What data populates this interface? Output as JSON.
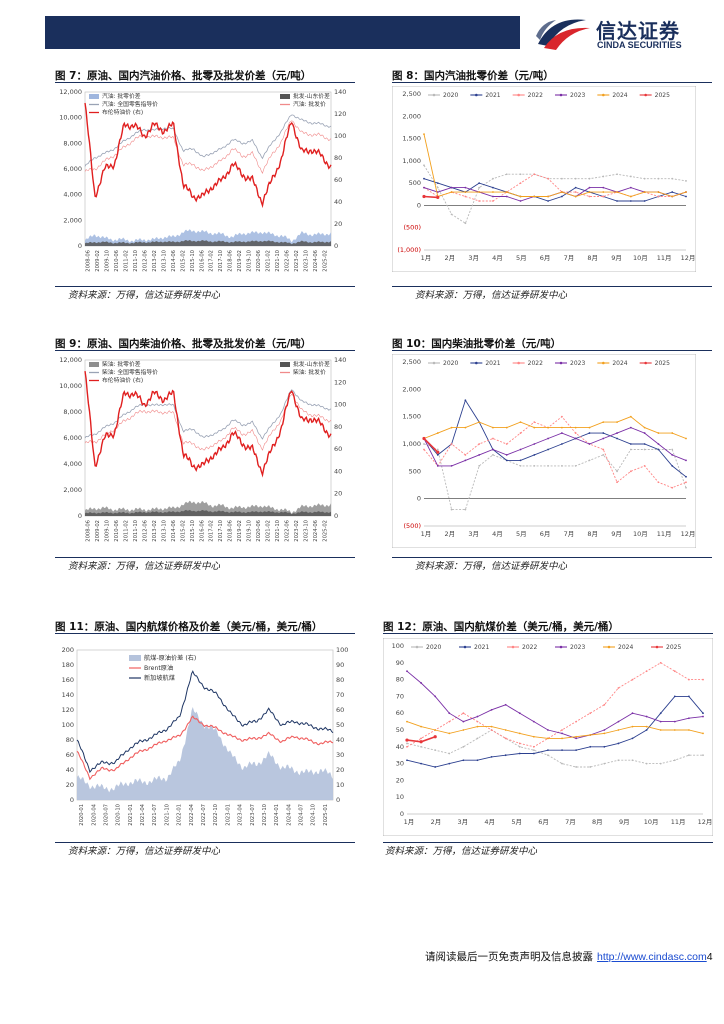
{
  "header": {
    "logo_cn": "信达证券",
    "logo_en": "CINDA SECURITIES"
  },
  "figures": {
    "f7": {
      "title": "图 7：原油、国内汽油价格、批零及批发价差（元/吨）",
      "source": "资料来源：万得，信达证券研发中心"
    },
    "f8": {
      "title": "图 8：国内汽油批零价差（元/吨）",
      "source": "资料来源：万得，信达证券研发中心"
    },
    "f9": {
      "title": "图 9：原油、国内柴油价格、批零及批发价差（元/吨）",
      "source": "资料来源：万得，信达证券研发中心"
    },
    "f10": {
      "title": "图 10：国内柴油批零价差（元/吨）",
      "source": "资料来源：万得，信达证券研发中心"
    },
    "f11": {
      "title": "图 11：原油、国内航煤价格及价差（美元/桶，美元/桶）",
      "source": "资料来源：万得，信达证券研发中心"
    },
    "f12": {
      "title": "图 12：原油、国内航煤价差（美元/桶，美元/桶）",
      "source": "资料来源：万得，信达证券研发中心"
    }
  },
  "footer": {
    "text": "请阅读最后一页免责声明及信息披露",
    "url": "http://www.cindasc.com",
    "page": "4"
  },
  "chart_data": [
    {
      "id": "fig7",
      "type": "line",
      "title": "",
      "y_left_ticks": [
        "12,000",
        "10,000",
        "8,000",
        "6,000",
        "4,000",
        "2,000",
        "0"
      ],
      "y_left_range": [
        0,
        12000
      ],
      "y_right_ticks": [
        "140",
        "120",
        "100",
        "80",
        "60",
        "40",
        "20",
        "0"
      ],
      "y_right_range": [
        0,
        140
      ],
      "x_ticks": [
        "2008-06",
        "2009-02",
        "2009-10",
        "2010-06",
        "2011-02",
        "2011-10",
        "2012-06",
        "2013-02",
        "2013-10",
        "2014-06",
        "2015-02",
        "2015-10",
        "2016-06",
        "2017-02",
        "2017-10",
        "2018-06",
        "2019-02",
        "2019-10",
        "2020-06",
        "2021-02",
        "2021-10",
        "2022-06",
        "2023-02",
        "2023-10",
        "2024-06",
        "2025-02"
      ],
      "legend": [
        "汽油: 批零价差",
        "批发-山东价差",
        "汽油: 全国零售指导价",
        "汽油: 批发价",
        "布伦特油价 (右)"
      ],
      "series_approx": {
        "retail": [
          6200,
          6900,
          7200,
          7600,
          8200,
          8700,
          9100,
          9000,
          9200,
          9100,
          7400,
          7600,
          6900,
          7300,
          7600,
          8300,
          8000,
          8200,
          6900,
          8000,
          9000,
          10300,
          9800,
          9600,
          9500,
          9300
        ],
        "wholesale": [
          5800,
          6000,
          6600,
          7100,
          7700,
          8300,
          8600,
          8500,
          8500,
          8400,
          6300,
          6400,
          5800,
          6300,
          6700,
          7600,
          7000,
          7200,
          5800,
          7100,
          8200,
          9900,
          8800,
          8700,
          8600,
          8300
        ],
        "brent_right": [
          130,
          45,
          70,
          75,
          110,
          110,
          100,
          110,
          105,
          110,
          55,
          45,
          45,
          55,
          60,
          75,
          65,
          60,
          40,
          60,
          80,
          115,
          85,
          88,
          82,
          72
        ],
        "spread_retail_wholesale": [
          400,
          900,
          600,
          500,
          500,
          400,
          500,
          500,
          700,
          700,
          1100,
          1200,
          1100,
          1000,
          900,
          700,
          1000,
          1000,
          1100,
          900,
          800,
          400,
          1000,
          900,
          900,
          1000
        ],
        "spread_wholesale_shandong": [
          200,
          300,
          300,
          250,
          250,
          250,
          300,
          300,
          350,
          300,
          400,
          400,
          400,
          350,
          350,
          300,
          350,
          350,
          400,
          350,
          300,
          200,
          350,
          300,
          300,
          350
        ]
      }
    },
    {
      "id": "fig8",
      "type": "line",
      "title": "",
      "y_ticks": [
        "2,500",
        "2,000",
        "1,500",
        "1,000",
        "500",
        "0",
        "(500)",
        "(1,000)"
      ],
      "y_range": [
        -1000,
        2500
      ],
      "x_ticks": [
        "1月",
        "2月",
        "3月",
        "4月",
        "5月",
        "6月",
        "7月",
        "8月",
        "9月",
        "10月",
        "11月",
        "12月"
      ],
      "series": [
        {
          "name": "2020",
          "color": "#b9b9b9",
          "values": [
            900,
            400,
            -200,
            -400,
            400,
            600,
            700,
            700,
            700,
            600,
            600,
            600,
            600,
            650,
            700,
            650,
            600,
            600,
            600,
            550
          ]
        },
        {
          "name": "2021",
          "color": "#2b3f8f",
          "values": [
            600,
            500,
            400,
            300,
            500,
            400,
            300,
            200,
            200,
            100,
            200,
            400,
            300,
            200,
            100,
            100,
            100,
            200,
            300,
            200
          ]
        },
        {
          "name": "2022",
          "color": "#ff8585",
          "values": [
            400,
            200,
            300,
            200,
            100,
            100,
            300,
            500,
            700,
            600,
            300,
            300,
            200,
            200,
            300,
            200,
            300,
            200,
            200,
            300
          ]
        },
        {
          "name": "2023",
          "color": "#7a2fa6",
          "values": [
            400,
            300,
            400,
            400,
            300,
            200,
            200,
            100,
            200,
            200,
            300,
            200,
            400,
            400,
            300,
            400,
            300,
            300,
            200,
            300
          ]
        },
        {
          "name": "2024",
          "color": "#f2a01e",
          "values": [
            1600,
            200,
            300,
            300,
            300,
            300,
            300,
            200,
            200,
            200,
            300,
            200,
            300,
            300,
            300,
            200,
            300,
            300,
            200,
            300
          ]
        },
        {
          "name": "2025",
          "color": "#e8363a",
          "values": [
            200,
            180
          ]
        }
      ]
    },
    {
      "id": "fig9",
      "type": "line",
      "title": "",
      "y_left_ticks": [
        "12,000",
        "10,000",
        "8,000",
        "6,000",
        "4,000",
        "2,000",
        "0"
      ],
      "y_left_range": [
        0,
        12000
      ],
      "y_right_ticks": [
        "140",
        "120",
        "100",
        "80",
        "60",
        "40",
        "20",
        "0"
      ],
      "y_right_range": [
        0,
        140
      ],
      "x_ticks": [
        "2008-06",
        "2009-02",
        "2009-10",
        "2010-06",
        "2011-02",
        "2011-10",
        "2012-06",
        "2013-02",
        "2013-10",
        "2014-06",
        "2015-02",
        "2015-10",
        "2016-06",
        "2017-02",
        "2017-10",
        "2018-06",
        "2019-02",
        "2019-10",
        "2020-06",
        "2021-02",
        "2021-10",
        "2022-06",
        "2023-02",
        "2023-10",
        "2024-06",
        "2025-02"
      ],
      "legend": [
        "柴油: 批零价差",
        "批发-山东价差",
        "柴油: 全国零售指导价",
        "柴油: 批发价",
        "布伦特油价 (右)"
      ],
      "series_approx": {
        "retail": [
          6000,
          6300,
          6800,
          7200,
          7800,
          8300,
          8600,
          8500,
          8600,
          8500,
          6500,
          6700,
          6000,
          6300,
          6600,
          7400,
          7000,
          7200,
          6000,
          7000,
          8000,
          9800,
          8800,
          8600,
          8400,
          8200
        ],
        "wholesale": [
          5600,
          5700,
          6200,
          6700,
          7300,
          7800,
          8100,
          8000,
          8000,
          7900,
          5600,
          5600,
          5000,
          5500,
          5800,
          6800,
          6300,
          6500,
          5200,
          6400,
          7500,
          9500,
          8100,
          7800,
          7600,
          7300
        ],
        "brent_right": [
          130,
          45,
          70,
          75,
          110,
          110,
          100,
          110,
          105,
          110,
          55,
          45,
          45,
          55,
          60,
          75,
          65,
          60,
          40,
          60,
          80,
          115,
          85,
          88,
          82,
          72
        ],
        "spread_retail_wholesale": [
          400,
          600,
          600,
          500,
          500,
          500,
          500,
          500,
          600,
          600,
          900,
          1100,
          1000,
          800,
          800,
          600,
          700,
          700,
          800,
          600,
          500,
          300,
          700,
          800,
          800,
          900
        ],
        "spread_wholesale_shandong": [
          200,
          250,
          250,
          250,
          250,
          250,
          300,
          300,
          300,
          300,
          400,
          400,
          400,
          350,
          350,
          300,
          300,
          300,
          350,
          300,
          300,
          200,
          300,
          300,
          300,
          300
        ]
      }
    },
    {
      "id": "fig10",
      "type": "line",
      "title": "",
      "y_ticks": [
        "2,500",
        "2,000",
        "1,500",
        "1,000",
        "500",
        "0",
        "(500)"
      ],
      "y_range": [
        -500,
        2500
      ],
      "x_ticks": [
        "1月",
        "2月",
        "3月",
        "4月",
        "5月",
        "6月",
        "7月",
        "8月",
        "9月",
        "10月",
        "11月",
        "12月"
      ],
      "series": [
        {
          "name": "2020",
          "color": "#b9b9b9",
          "values": [
            1000,
            900,
            -200,
            -200,
            600,
            800,
            700,
            600,
            600,
            600,
            600,
            600,
            700,
            800,
            500,
            900,
            900,
            900,
            900,
            200
          ]
        },
        {
          "name": "2021",
          "color": "#2b3f8f",
          "values": [
            1100,
            800,
            1000,
            1800,
            1400,
            900,
            700,
            700,
            800,
            900,
            1000,
            1100,
            1200,
            1200,
            1100,
            1000,
            1000,
            900,
            600,
            400
          ]
        },
        {
          "name": "2022",
          "color": "#ff8585",
          "values": [
            900,
            600,
            1000,
            800,
            1000,
            1100,
            1000,
            1200,
            1400,
            1300,
            1500,
            1200,
            1000,
            900,
            300,
            500,
            600,
            300,
            200,
            300
          ]
        },
        {
          "name": "2023",
          "color": "#7a2fa6",
          "values": [
            1100,
            600,
            600,
            700,
            800,
            900,
            800,
            900,
            1000,
            1100,
            1200,
            1100,
            1000,
            1100,
            1200,
            1300,
            1200,
            1000,
            800,
            700
          ]
        },
        {
          "name": "2024",
          "color": "#f2a01e",
          "values": [
            1100,
            1200,
            1300,
            1300,
            1400,
            1300,
            1300,
            1400,
            1300,
            1300,
            1300,
            1300,
            1300,
            1400,
            1400,
            1500,
            1300,
            1200,
            1200,
            1100
          ]
        },
        {
          "name": "2025",
          "color": "#e8363a",
          "values": [
            1100,
            850
          ]
        }
      ]
    },
    {
      "id": "fig11",
      "type": "line",
      "title": "",
      "y_left_ticks": [
        "200",
        "180",
        "160",
        "140",
        "120",
        "100",
        "80",
        "60",
        "40",
        "20",
        "0"
      ],
      "y_left_range": [
        0,
        200
      ],
      "y_right_ticks": [
        "100",
        "90",
        "80",
        "70",
        "60",
        "50",
        "40",
        "30",
        "20",
        "10",
        "0"
      ],
      "y_right_range": [
        0,
        100
      ],
      "x_ticks": [
        "2020-01",
        "2020-04",
        "2020-07",
        "2020-10",
        "2021-01",
        "2021-04",
        "2021-07",
        "2021-10",
        "2022-01",
        "2022-04",
        "2022-07",
        "2022-10",
        "2023-01",
        "2023-04",
        "2023-07",
        "2023-10",
        "2024-01",
        "2024-04",
        "2024-07",
        "2024-10",
        "2025-01"
      ],
      "legend": [
        "航煤-原油价差 (右)",
        "Brent原油",
        "新加坡航煤"
      ],
      "series_approx": {
        "brent": [
          65,
          30,
          42,
          40,
          55,
          65,
          72,
          80,
          85,
          110,
          100,
          95,
          85,
          80,
          82,
          88,
          78,
          85,
          80,
          75,
          78
        ],
        "jet": [
          80,
          40,
          50,
          50,
          68,
          78,
          85,
          95,
          110,
          170,
          150,
          140,
          115,
          100,
          105,
          120,
          100,
          105,
          100,
          95,
          92
        ],
        "spread_right": [
          15,
          10,
          8,
          8,
          12,
          12,
          13,
          15,
          25,
          60,
          50,
          45,
          30,
          22,
          24,
          30,
          22,
          20,
          18,
          20,
          16
        ]
      }
    },
    {
      "id": "fig12",
      "type": "line",
      "title": "",
      "y_ticks": [
        "100",
        "90",
        "80",
        "70",
        "60",
        "50",
        "40",
        "30",
        "20",
        "10",
        "0"
      ],
      "y_range": [
        0,
        100
      ],
      "x_ticks": [
        "1月",
        "2月",
        "3月",
        "4月",
        "5月",
        "6月",
        "7月",
        "8月",
        "9月",
        "10月",
        "11月",
        "12月"
      ],
      "series": [
        {
          "name": "2020",
          "color": "#b9b9b9",
          "values": [
            42,
            40,
            38,
            36,
            40,
            45,
            50,
            45,
            40,
            38,
            35,
            30,
            28,
            28,
            30,
            32,
            32,
            30,
            30,
            32,
            35,
            35
          ]
        },
        {
          "name": "2021",
          "color": "#2b3f8f",
          "values": [
            32,
            30,
            28,
            30,
            32,
            32,
            34,
            35,
            36,
            36,
            38,
            38,
            38,
            40,
            40,
            42,
            45,
            50,
            60,
            70,
            70,
            60
          ]
        },
        {
          "name": "2022",
          "color": "#ff8585",
          "values": [
            40,
            45,
            50,
            55,
            60,
            55,
            50,
            45,
            42,
            40,
            45,
            50,
            55,
            60,
            65,
            75,
            80,
            85,
            90,
            85,
            80,
            80
          ]
        },
        {
          "name": "2023",
          "color": "#7a2fa6",
          "values": [
            85,
            78,
            70,
            60,
            55,
            58,
            62,
            65,
            60,
            55,
            50,
            48,
            45,
            47,
            50,
            55,
            60,
            58,
            55,
            55,
            57,
            58
          ]
        },
        {
          "name": "2024",
          "color": "#f2a01e",
          "values": [
            55,
            52,
            50,
            48,
            50,
            52,
            52,
            50,
            48,
            46,
            45,
            45,
            46,
            47,
            48,
            50,
            52,
            52,
            50,
            50,
            50,
            48
          ]
        },
        {
          "name": "2025",
          "color": "#e8363a",
          "values": [
            44,
            43,
            46
          ]
        }
      ]
    }
  ]
}
